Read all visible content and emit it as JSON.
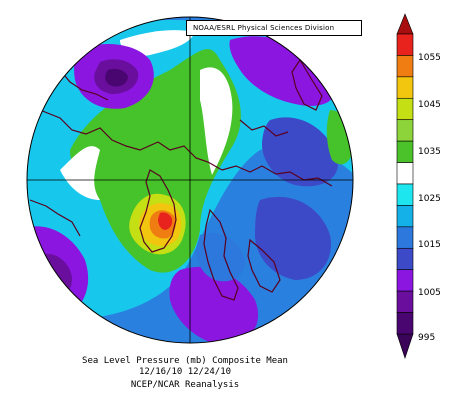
{
  "credit": "NOAA/ESRL Physical Sciences Division",
  "caption": {
    "line1": "Sea Level Pressure (mb) Composite Mean",
    "line2": "12/16/10 12/24/10",
    "line3": "NCEP/NCAR Reanalysis"
  },
  "colorbar": {
    "labels": [
      "1055",
      "1045",
      "1035",
      "1025",
      "1015",
      "1005",
      "995"
    ],
    "colors": [
      "#e8221c",
      "#f07d12",
      "#f2c60f",
      "#c4df14",
      "#8cd43a",
      "#4cc22a",
      "#ffffff",
      "#1ee6ee",
      "#14b0e8",
      "#2c78dc",
      "#3c4ac8",
      "#8a16e0",
      "#6a0e9e",
      "#4a0670"
    ]
  },
  "map": {
    "projection": "north-polar-stereographic",
    "variable": "sea-level-pressure"
  }
}
